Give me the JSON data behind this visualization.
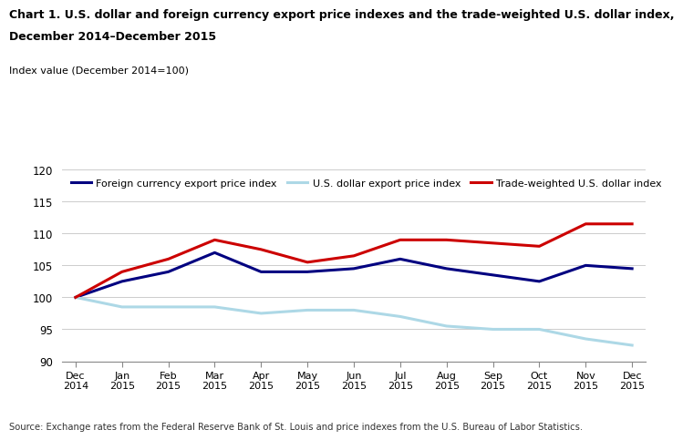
{
  "title_line1": "Chart 1. U.S. dollar and foreign currency export price indexes and the trade-weighted U.S. dollar index,",
  "title_line2": "December 2014–December 2015",
  "ylabel": "Index value (December 2014=100)",
  "source": "Source: Exchange rates from the Federal Reserve Bank of St. Louis and price indexes from the U.S. Bureau of Labor Statistics.",
  "x_labels": [
    "Dec\n2014",
    "Jan\n2015",
    "Feb\n2015",
    "Mar\n2015",
    "Apr\n2015",
    "May\n2015",
    "Jun\n2015",
    "Jul\n2015",
    "Aug\n2015",
    "Sep\n2015",
    "Oct\n2015",
    "Nov\n2015",
    "Dec\n2015"
  ],
  "ylim": [
    90,
    120
  ],
  "yticks": [
    90,
    95,
    100,
    105,
    110,
    115,
    120
  ],
  "foreign_currency": [
    100.0,
    102.5,
    104.0,
    107.0,
    104.0,
    104.0,
    104.5,
    106.0,
    104.5,
    103.5,
    102.5,
    105.0,
    104.5
  ],
  "usd_export": [
    100.0,
    98.5,
    98.5,
    98.5,
    97.5,
    98.0,
    98.0,
    97.0,
    95.5,
    95.0,
    95.0,
    93.5,
    92.5
  ],
  "trade_weighted": [
    100.0,
    104.0,
    106.0,
    109.0,
    107.5,
    105.5,
    106.5,
    109.0,
    109.0,
    108.5,
    108.0,
    111.5,
    111.5
  ],
  "color_foreign": "#000080",
  "color_usd": "#add8e6",
  "color_trade": "#cc0000",
  "linewidth": 2.2,
  "background_color": "#ffffff",
  "grid_color": "#cccccc"
}
